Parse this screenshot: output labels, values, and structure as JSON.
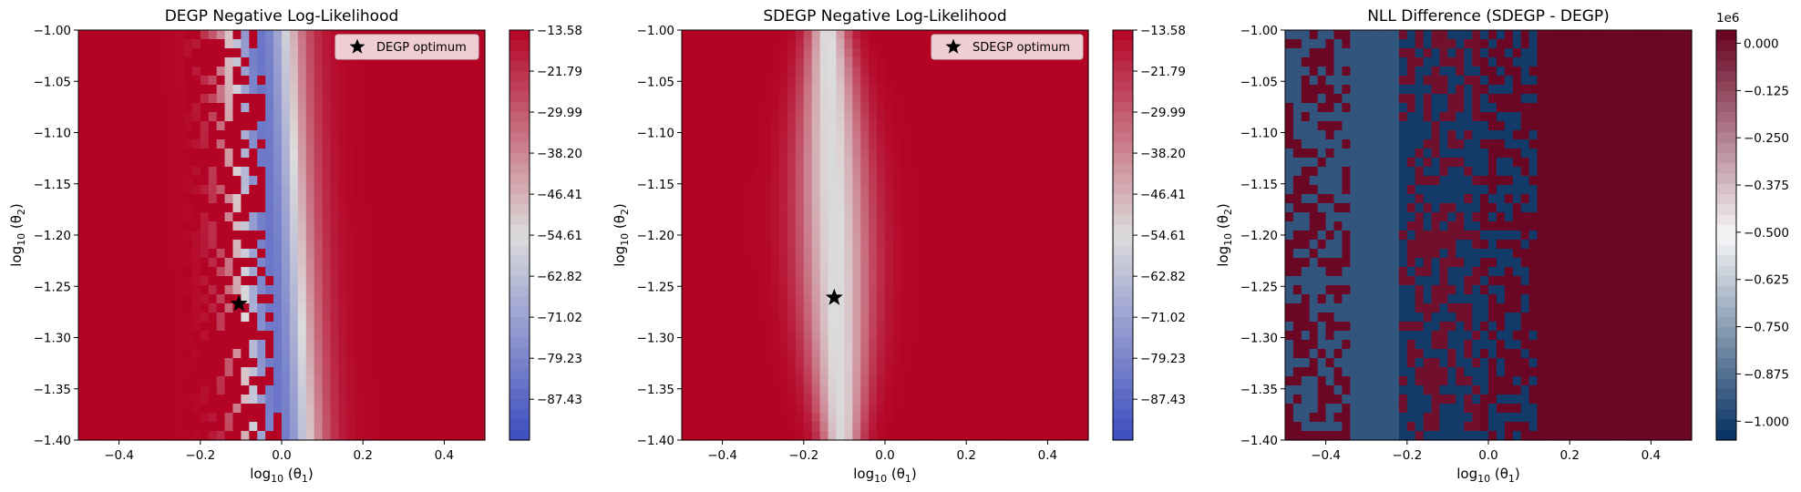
{
  "colors": {
    "cmap_low": "#3b4cc0",
    "cmap_mid": "#dddcdc",
    "cmap_high": "#b40426",
    "diff_low": "#053061",
    "diff_mid": "#f7f7f7",
    "diff_high": "#67001f",
    "axis": "#000000",
    "legend_bg": "#ffffff"
  },
  "chart_data": [
    {
      "type": "heatmap",
      "title": "DEGP Negative Log-Likelihood",
      "xlabel": "log10(θ1)",
      "ylabel": "log10(θ2)",
      "xlim": [
        -0.5,
        0.5
      ],
      "ylim": [
        -1.4,
        -1.0
      ],
      "xticks": [
        "−0.4",
        "−0.2",
        "0.0",
        "0.2",
        "0.4"
      ],
      "xtick_values": [
        -0.4,
        -0.2,
        0.0,
        0.2,
        0.4
      ],
      "yticks": [
        "−1.00",
        "−1.05",
        "−1.10",
        "−1.15",
        "−1.20",
        "−1.25",
        "−1.30",
        "−1.35",
        "−1.40"
      ],
      "ytick_values": [
        -1.0,
        -1.05,
        -1.1,
        -1.15,
        -1.2,
        -1.25,
        -1.3,
        -1.35,
        -1.4
      ],
      "colorbar": {
        "range": [
          -95.6,
          -13.58
        ],
        "ticks": [
          "−13.58",
          "−21.79",
          "−29.99",
          "−38.20",
          "−46.41",
          "−54.61",
          "−62.82",
          "−71.02",
          "−79.23",
          "−87.43"
        ],
        "tick_values": [
          -13.58,
          -21.79,
          -29.99,
          -38.2,
          -46.41,
          -54.61,
          -62.82,
          -71.02,
          -79.23,
          -87.43
        ],
        "exponent": ""
      },
      "field": "degp",
      "optimum": {
        "x": -0.105,
        "y": -1.267
      },
      "legend": [
        "DEGP optimum"
      ]
    },
    {
      "type": "heatmap",
      "title": "SDEGP Negative Log-Likelihood",
      "xlabel": "log10(θ1)",
      "ylabel": "log10(θ2)",
      "xlim": [
        -0.5,
        0.5
      ],
      "ylim": [
        -1.4,
        -1.0
      ],
      "xticks": [
        "−0.4",
        "−0.2",
        "0.0",
        "0.2",
        "0.4"
      ],
      "xtick_values": [
        -0.4,
        -0.2,
        0.0,
        0.2,
        0.4
      ],
      "yticks": [
        "−1.00",
        "−1.05",
        "−1.10",
        "−1.15",
        "−1.20",
        "−1.25",
        "−1.30",
        "−1.35",
        "−1.40"
      ],
      "ytick_values": [
        -1.0,
        -1.05,
        -1.1,
        -1.15,
        -1.2,
        -1.25,
        -1.3,
        -1.35,
        -1.4
      ],
      "colorbar": {
        "range": [
          -95.6,
          -13.58
        ],
        "ticks": [
          "−13.58",
          "−21.79",
          "−29.99",
          "−38.20",
          "−46.41",
          "−54.61",
          "−62.82",
          "−71.02",
          "−79.23",
          "−87.43"
        ],
        "tick_values": [
          -13.58,
          -21.79,
          -29.99,
          -38.2,
          -46.41,
          -54.61,
          -62.82,
          -71.02,
          -79.23,
          -87.43
        ],
        "exponent": ""
      },
      "field": "sdegp",
      "optimum": {
        "x": -0.125,
        "y": -1.261
      },
      "legend": [
        "SDEGP optimum"
      ]
    },
    {
      "type": "heatmap",
      "title": "NLL Difference (SDEGP - DEGP)",
      "xlabel": "log10(θ1)",
      "ylabel": "log10(θ2)",
      "xlim": [
        -0.5,
        0.5
      ],
      "ylim": [
        -1.4,
        -1.0
      ],
      "xticks": [
        "−0.4",
        "−0.2",
        "0.0",
        "0.2",
        "0.4"
      ],
      "xtick_values": [
        -0.4,
        -0.2,
        0.0,
        0.2,
        0.4
      ],
      "yticks": [
        "−1.00",
        "−1.05",
        "−1.10",
        "−1.15",
        "−1.20",
        "−1.25",
        "−1.30",
        "−1.35",
        "−1.40"
      ],
      "ytick_values": [
        -1.0,
        -1.05,
        -1.1,
        -1.15,
        -1.2,
        -1.25,
        -1.3,
        -1.35,
        -1.4
      ],
      "colorbar": {
        "range": [
          -1.05,
          0.035
        ],
        "ticks": [
          "0.000",
          "−0.125",
          "−0.250",
          "−0.375",
          "−0.500",
          "−0.625",
          "−0.750",
          "−0.875",
          "−1.000"
        ],
        "tick_values": [
          0.0,
          -0.125,
          -0.25,
          -0.375,
          -0.5,
          -0.625,
          -0.75,
          -0.875,
          -1.0
        ],
        "exponent": "1e6"
      },
      "field": "diff",
      "legend": []
    }
  ]
}
